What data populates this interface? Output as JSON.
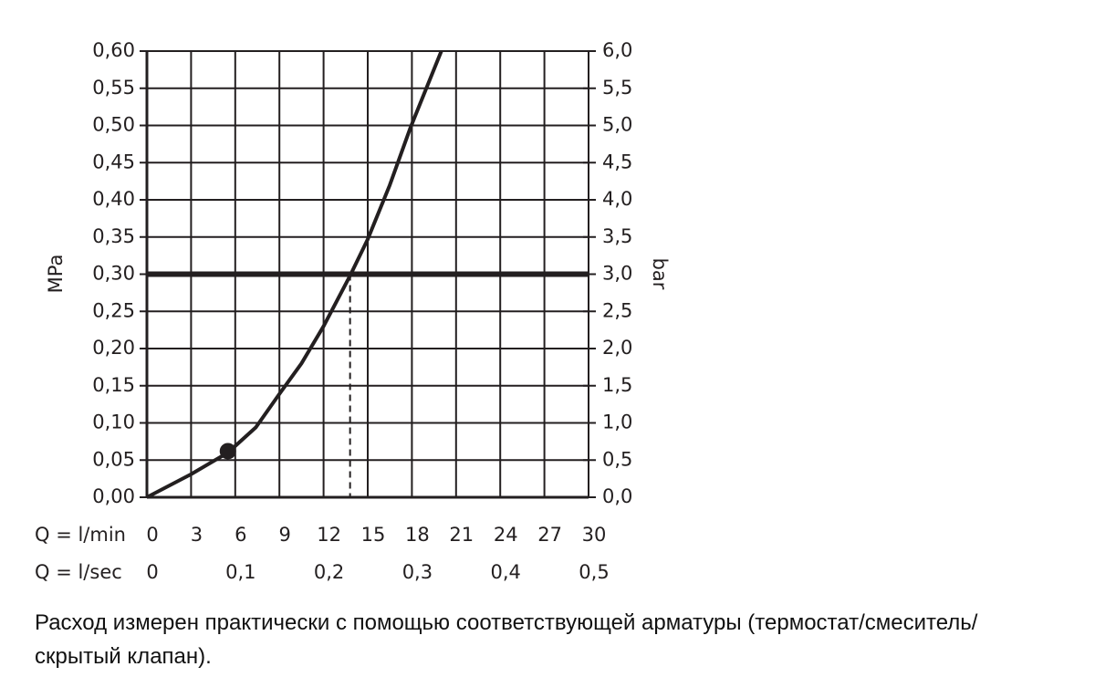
{
  "chart_data": {
    "type": "line",
    "ylabel": "MPa",
    "y2label": "bar",
    "xlabel": "Q = l/min",
    "x2label": "Q = l/sec",
    "x": [
      0,
      3,
      5.5,
      7.4,
      9,
      10.5,
      12,
      13.8,
      15,
      16.5,
      17.9,
      20
    ],
    "series": [
      {
        "color": "#231f20",
        "values": [
          0,
          0.031,
          0.06,
          0.094,
          0.139,
          0.18,
          0.23,
          0.298,
          0.347,
          0.42,
          0.497,
          0.6
        ]
      }
    ],
    "marker": {
      "x": 5.5,
      "y": 0.062
    },
    "hline": 0.3,
    "vline": 13.8,
    "xlim": [
      0,
      30
    ],
    "xticks": [
      0,
      3,
      6,
      9,
      12,
      15,
      18,
      21,
      24,
      27,
      30
    ],
    "x2lim": [
      0,
      0.5
    ],
    "x2ticks": [
      0,
      {
        "value": 0.1,
        "label": "0,1"
      },
      {
        "value": 0.2,
        "label": "0,2"
      },
      {
        "value": 0.3,
        "label": "0,3"
      },
      {
        "value": 0.4,
        "label": "0,4"
      },
      {
        "value": 0.5,
        "label": "0,5"
      }
    ],
    "ylim": [
      0,
      0.6
    ],
    "yticks": [
      {
        "value": 0,
        "label": "0,00"
      },
      {
        "value": 0.05,
        "label": "0,05"
      },
      {
        "value": 0.1,
        "label": "0,10"
      },
      {
        "value": 0.15,
        "label": "0,15"
      },
      {
        "value": 0.2,
        "label": "0,20"
      },
      {
        "value": 0.25,
        "label": "0,25"
      },
      {
        "value": 0.3,
        "label": "0,30"
      },
      {
        "value": 0.35,
        "label": "0,35"
      },
      {
        "value": 0.4,
        "label": "0,40"
      },
      {
        "value": 0.45,
        "label": "0,45"
      },
      {
        "value": 0.5,
        "label": "0,50"
      },
      {
        "value": 0.55,
        "label": "0,55"
      },
      {
        "value": 0.6,
        "label": "0,60"
      }
    ],
    "y2lim": [
      0,
      6
    ],
    "y2ticks": [
      {
        "value": 0,
        "label": "0,0"
      },
      {
        "value": 0.5,
        "label": "0,5"
      },
      {
        "value": 1,
        "label": "1,0"
      },
      {
        "value": 1.5,
        "label": "1,5"
      },
      {
        "value": 2,
        "label": "2,0"
      },
      {
        "value": 2.5,
        "label": "2,5"
      },
      {
        "value": 3,
        "label": "3,0"
      },
      {
        "value": 3.5,
        "label": "3,5"
      },
      {
        "value": 4,
        "label": "4,0"
      },
      {
        "value": 4.5,
        "label": "4,5"
      },
      {
        "value": 5,
        "label": "5,0"
      },
      {
        "value": 5.5,
        "label": "5,5"
      },
      {
        "value": 6,
        "label": "6,0"
      }
    ],
    "grid": true
  },
  "caption": "Расход измерен практически с помощью соответствующей арматуры (термостат/смеситель/скрытый клапан)."
}
